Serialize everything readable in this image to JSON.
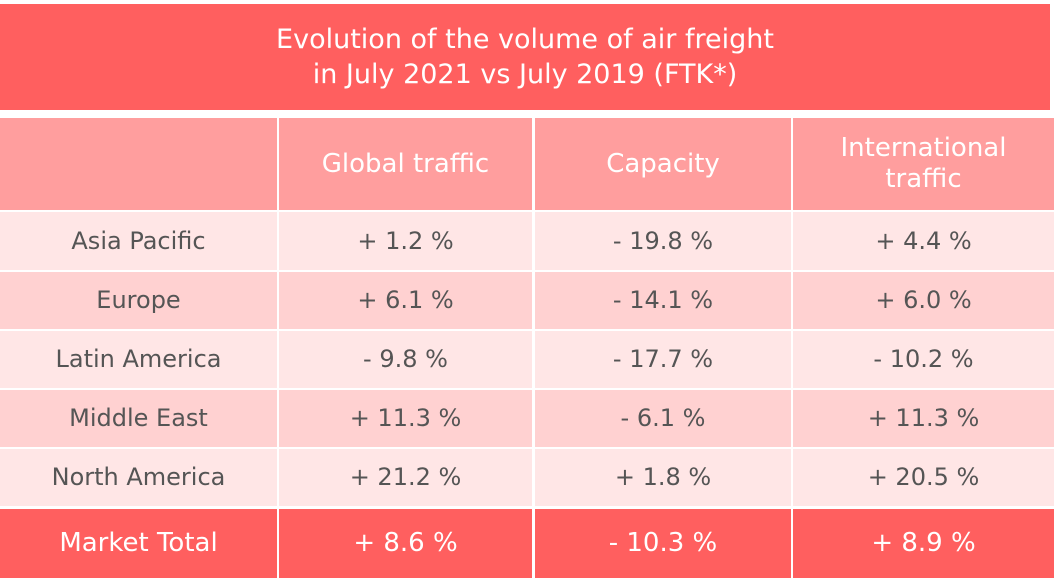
{
  "chart_data": {
    "type": "table",
    "title": "Evolution of the volume of air freight\nin July 2021 vs July 2019 (FTK*)",
    "columns": [
      "",
      "Global traffic",
      "Capacity",
      "International\ntraffic"
    ],
    "rows": [
      [
        "Asia Pacific",
        "+ 1.2 %",
        "- 19.8 %",
        "+ 4.4 %"
      ],
      [
        "Europe",
        "+ 6.1 %",
        "- 14.1 %",
        "+ 6.0 %"
      ],
      [
        "Latin America",
        "- 9.8 %",
        "- 17.7 %",
        "- 10.2 %"
      ],
      [
        "Middle East",
        "+ 11.3 %",
        "- 6.1 %",
        "+ 11.3 %"
      ],
      [
        "North America",
        "+ 21.2 %",
        "+ 1.8 %",
        "+ 20.5 %"
      ]
    ],
    "total": [
      "Market Total",
      "+ 8.6 %",
      "- 10.3 %",
      "+ 8.9 %"
    ],
    "colors": {
      "title": "#ff5f5f",
      "header": "#ff9e9e",
      "row_light": "#ffe6e6",
      "row_dark": "#ffd1d1",
      "total": "#ff5f5f"
    }
  }
}
